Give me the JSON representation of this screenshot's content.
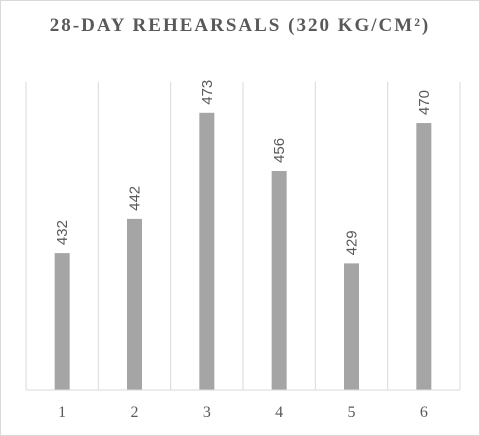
{
  "chart_data": {
    "type": "bar",
    "title": "28-DAY REHEARSALS (320 KG/CM²)",
    "categories": [
      "1",
      "2",
      "3",
      "4",
      "5",
      "6"
    ],
    "values": [
      432,
      442,
      473,
      456,
      429,
      470
    ],
    "xlabel": "",
    "ylabel": "",
    "ylim": [
      392,
      482
    ],
    "grid": "vertical",
    "legend": "none",
    "bar_color": "#a5a5a5",
    "grid_color": "#d9d9d9",
    "text_color": "#595959"
  }
}
